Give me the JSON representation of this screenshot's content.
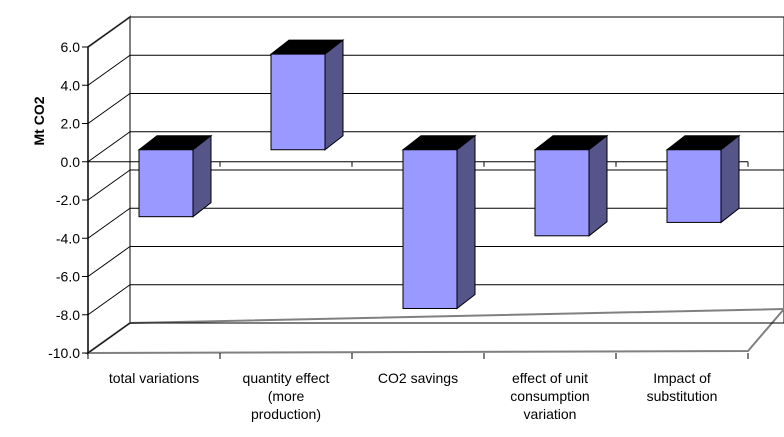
{
  "chart_data": {
    "type": "bar",
    "title": "",
    "xlabel": "",
    "ylabel": "Mt CO2",
    "ylim": [
      -10,
      6
    ],
    "ytick_step": 2,
    "yticks": [
      "6.0",
      "4.0",
      "2.0",
      "0.0",
      "-2.0",
      "-4.0",
      "-6.0",
      "-8.0",
      "-10.0"
    ],
    "grid": true,
    "legend": "none",
    "style": "3d",
    "categories": [
      [
        "total variations"
      ],
      [
        "quantity effect",
        "(more",
        "production)"
      ],
      [
        "CO2 savings"
      ],
      [
        "effect of unit",
        "consumption",
        "variation"
      ],
      [
        "Impact of",
        "substitution"
      ]
    ],
    "values": [
      -3.5,
      5.0,
      -8.3,
      -4.5,
      -3.8
    ],
    "colors": {
      "bar_front": "#9999ff",
      "bar_side": "#55558a",
      "bar_top": "#000000",
      "grid": "#000000",
      "wall": "#ffffff"
    }
  }
}
